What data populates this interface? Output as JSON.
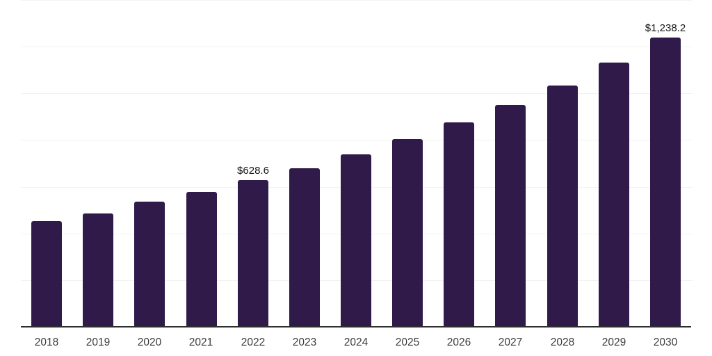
{
  "chart_data": {
    "type": "bar",
    "title": "",
    "xlabel": "",
    "ylabel": "",
    "categories": [
      "2018",
      "2019",
      "2020",
      "2021",
      "2022",
      "2023",
      "2024",
      "2025",
      "2026",
      "2027",
      "2028",
      "2029",
      "2030"
    ],
    "values": [
      453,
      486,
      536,
      577,
      628.6,
      678,
      738,
      803,
      877,
      951,
      1034,
      1132,
      1238.2
    ],
    "value_labels": [
      {
        "category": "2022",
        "text": "$628.6"
      },
      {
        "category": "2030",
        "text": "$1,238.2"
      }
    ],
    "ylim": [
      0,
      1400
    ],
    "gridline_step": 200,
    "grid": true,
    "legend": false,
    "y_axis_tick_labels_visible": false,
    "currency_prefix": "$"
  },
  "style": {
    "bar_color": "#301a4a",
    "gridline_color": "#f2f2f2",
    "axis_color": "#2e2e2e",
    "tick_label_color": "#3c3c3c",
    "value_label_color": "#141414",
    "background_color": "#ffffff"
  }
}
